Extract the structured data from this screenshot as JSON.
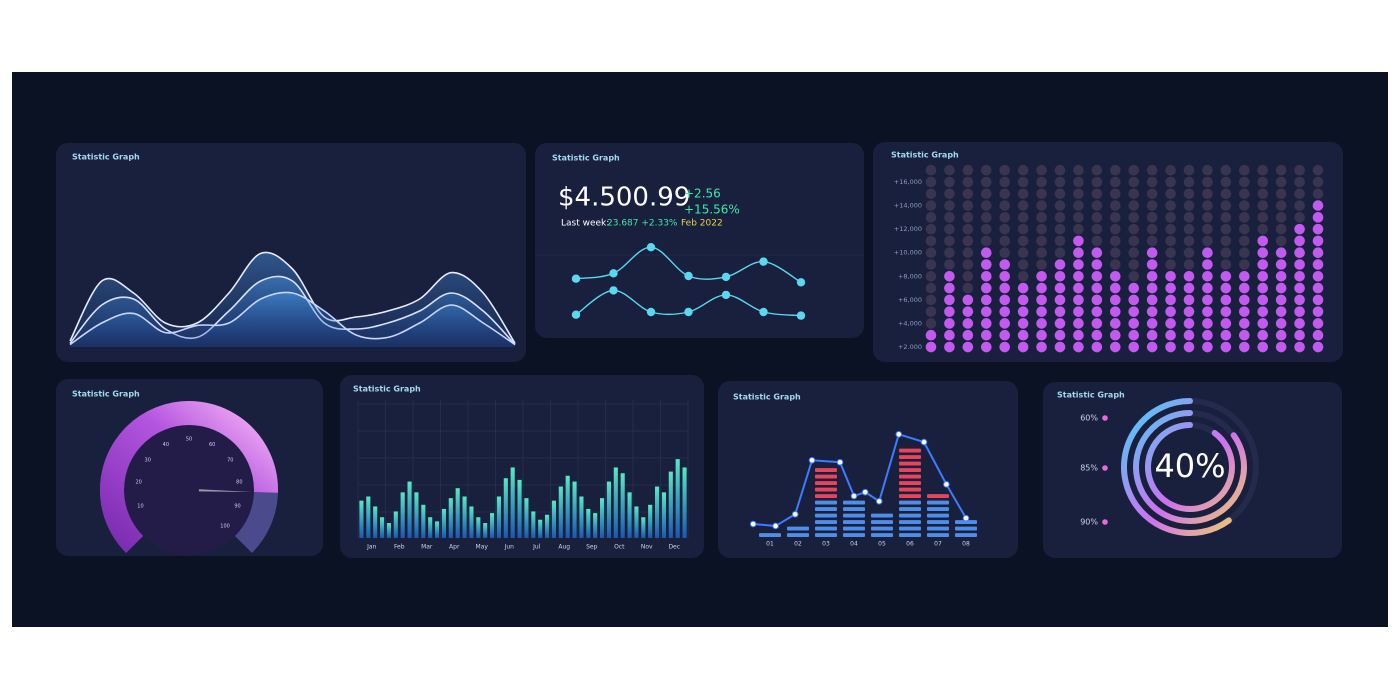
{
  "chart_data": [
    {
      "type": "area",
      "title": "Statistic Graph",
      "ylim": [
        0,
        100
      ],
      "series": [
        {
          "color": "#e6ecff",
          "values": [
            5,
            55,
            45,
            20,
            20,
            45,
            78,
            65,
            25,
            25,
            30,
            40,
            62,
            45,
            3
          ]
        },
        {
          "color": "#d8e2ff",
          "values": [
            3,
            35,
            40,
            15,
            8,
            30,
            55,
            55,
            20,
            15,
            20,
            30,
            45,
            30,
            2
          ]
        },
        {
          "color": "#c8d6ff",
          "values": [
            2,
            20,
            28,
            12,
            18,
            20,
            40,
            45,
            30,
            10,
            8,
            20,
            35,
            20,
            2
          ]
        }
      ]
    },
    {
      "type": "line",
      "title": "Statistic Graph",
      "value_text": "$4.500.99",
      "change": "+2.56",
      "change_pct": "+15.56%",
      "note_label": "Last week:",
      "note_value": "23.687 +2.33%",
      "date": "Feb 2022",
      "ylim": [
        0,
        100
      ],
      "series": [
        {
          "color": "#5ad8f0",
          "values": [
            57,
            63,
            92,
            60,
            59,
            76,
            53
          ]
        },
        {
          "color": "#5ad8f0",
          "values": [
            17,
            44,
            20,
            20,
            39,
            20,
            16
          ]
        }
      ]
    },
    {
      "type": "dot_matrix",
      "title": "Statistic Graph",
      "color": "#c25af0",
      "ylim": [
        1000,
        17000
      ],
      "yticks": [
        {
          "value": 2000,
          "label": "+2.000"
        },
        {
          "value": 4000,
          "label": "+4,000"
        },
        {
          "value": 6000,
          "label": "+6,000"
        },
        {
          "value": 8000,
          "label": "+8,000"
        },
        {
          "value": 10000,
          "label": "+10,000"
        },
        {
          "value": 12000,
          "label": "+12,000"
        },
        {
          "value": 14000,
          "label": "+14,000"
        },
        {
          "value": 16000,
          "label": "+16,000"
        }
      ],
      "values": [
        3000,
        8000,
        6000,
        10000,
        9000,
        7000,
        8000,
        9000,
        11000,
        10000,
        8000,
        7000,
        10000,
        8000,
        8000,
        10000,
        8000,
        8000,
        11000,
        10000,
        12000,
        14000
      ]
    },
    {
      "type": "gauge",
      "title": "Statistic Graph",
      "ylim": [
        0,
        100
      ],
      "value": 84,
      "ticks": [
        10,
        20,
        30,
        40,
        50,
        60,
        70,
        80,
        90,
        100
      ]
    },
    {
      "type": "bar",
      "title": "Statistic Graph",
      "ylim": [
        0,
        100
      ],
      "categories": [
        "Jan",
        "Feb",
        "Mar",
        "Apr",
        "May",
        "Jun",
        "Jul",
        "Aug",
        "Sep",
        "Oct",
        "Nov",
        "Dec"
      ],
      "values": [
        [
          45,
          50,
          38,
          25
        ],
        [
          18,
          32,
          55,
          68
        ],
        [
          55,
          40,
          25,
          20
        ],
        [
          35,
          48,
          60,
          50
        ],
        [
          38,
          25,
          18,
          30
        ],
        [
          50,
          72,
          85,
          70
        ],
        [
          48,
          32,
          22,
          28
        ],
        [
          45,
          62,
          75,
          68
        ],
        [
          50,
          35,
          30,
          48
        ],
        [
          68,
          85,
          78,
          55
        ],
        [
          38,
          25,
          40,
          62
        ],
        [
          55,
          80,
          95,
          85
        ]
      ]
    },
    {
      "type": "dash_bar",
      "title": "Statistic Graph",
      "ylim": [
        0,
        16
      ],
      "categories": [
        "01",
        "02",
        "03",
        "04",
        "05",
        "06",
        "07",
        "08"
      ],
      "values": [
        1,
        2,
        11,
        6,
        4,
        14,
        7,
        3
      ],
      "line": {
        "color": "#3d7bff",
        "x": [
          -0.6,
          0.2,
          0.9,
          1.5,
          2.5,
          3,
          3.4,
          3.9,
          4.6,
          5.5,
          6.3,
          7
        ],
        "values": [
          2,
          1.7,
          3.5,
          11.8,
          11.5,
          6.3,
          6.9,
          5.5,
          15.8,
          14.6,
          8.1,
          2.9
        ]
      }
    },
    {
      "type": "rings",
      "title": "Statistic Graph",
      "ylim": [
        0,
        100
      ],
      "center_label": "40%",
      "values": [
        60,
        85,
        90
      ],
      "value_labels": [
        "60%",
        "85%",
        "90%"
      ]
    }
  ]
}
